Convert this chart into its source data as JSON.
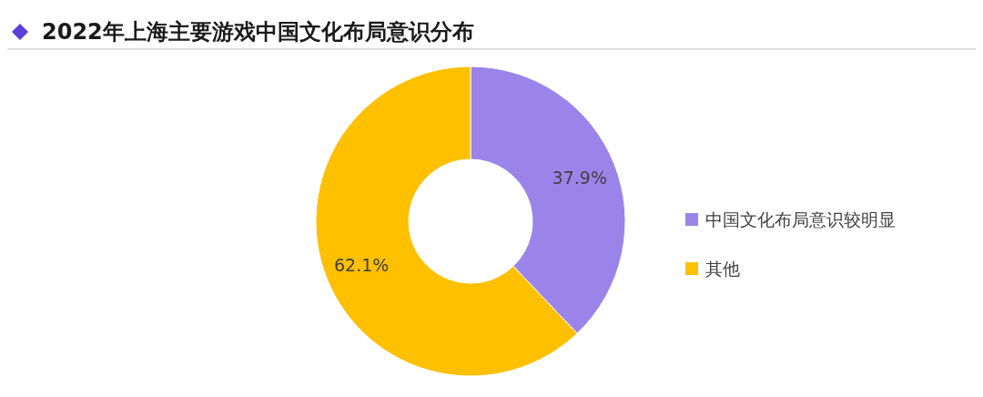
{
  "chart_data": {
    "type": "donut",
    "title": "2022年上海主要游戏中国文化布局意识分布",
    "categories": [
      "中国文化布局意识较明显",
      "其他"
    ],
    "values": [
      37.9,
      62.1
    ],
    "colors": [
      "#9b84e9",
      "#ffc000"
    ],
    "value_labels": [
      "37.9%",
      "62.1%"
    ],
    "legend": "right"
  }
}
